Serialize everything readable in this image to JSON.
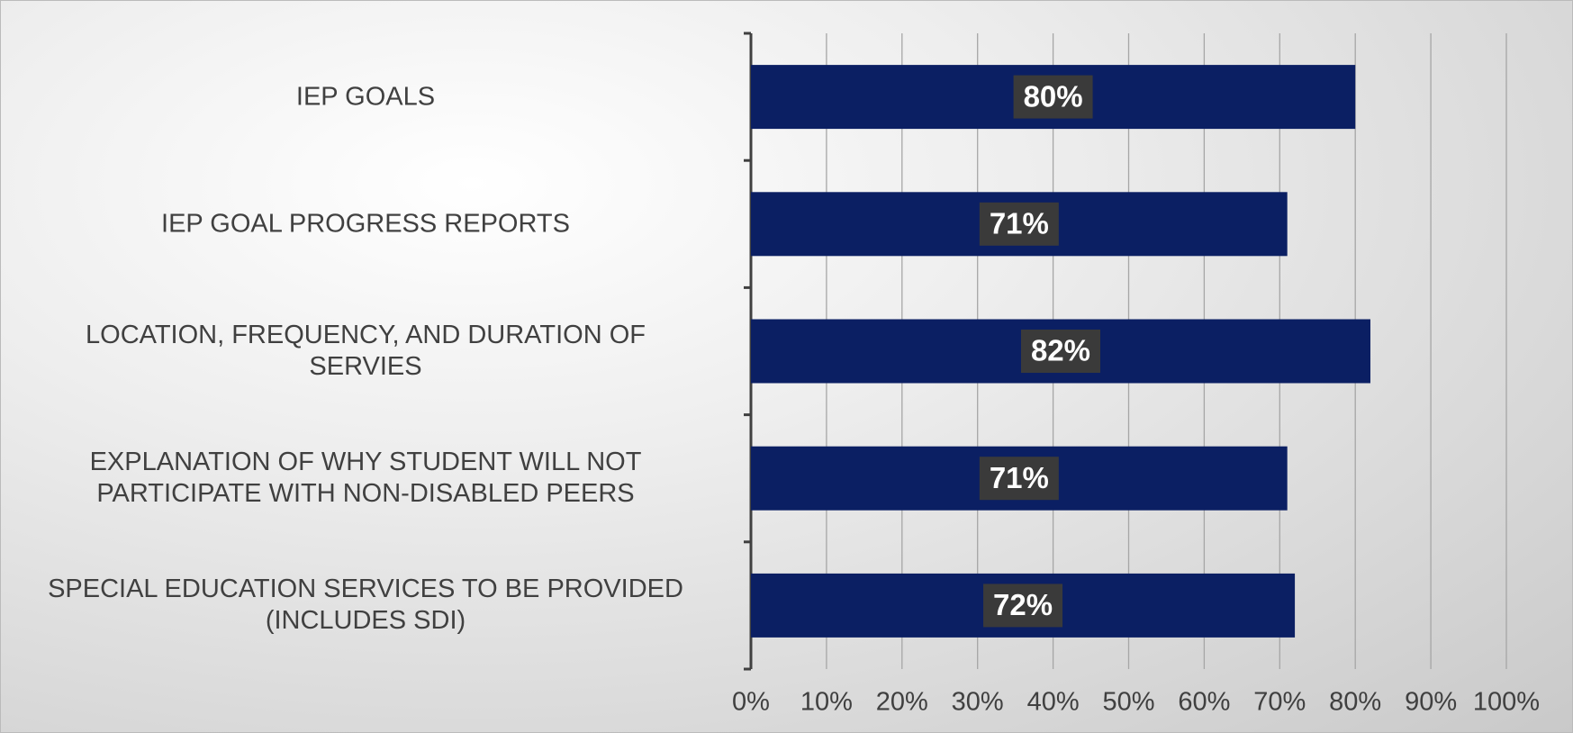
{
  "chart_data": {
    "type": "barh",
    "categories": [
      "IEP GOALS",
      "IEP GOAL PROGRESS REPORTS",
      "LOCATION, FREQUENCY, AND DURATION OF\nSERVIES",
      "EXPLANATION OF WHY STUDENT WILL NOT\nPARTICIPATE WITH NON-DISABLED PEERS",
      "SPECIAL EDUCATION SERVICES TO BE PROVIDED\n(INCLUDES SDI)"
    ],
    "values": [
      80,
      71,
      82,
      71,
      72
    ],
    "value_labels": [
      "80%",
      "71%",
      "82%",
      "71%",
      "72%"
    ],
    "color": "#0b1f63",
    "xlim": [
      0,
      100
    ],
    "xticks": [
      {
        "value": 0,
        "label": "0%"
      },
      {
        "value": 10,
        "label": "10%"
      },
      {
        "value": 20,
        "label": "20%"
      },
      {
        "value": 30,
        "label": "30%"
      },
      {
        "value": 40,
        "label": "40%"
      },
      {
        "value": 50,
        "label": "50%"
      },
      {
        "value": 60,
        "label": "60%"
      },
      {
        "value": 70,
        "label": "70%"
      },
      {
        "value": 80,
        "label": "80%"
      },
      {
        "value": 90,
        "label": "90%"
      },
      {
        "value": 100,
        "label": "100%"
      }
    ],
    "grid": true
  }
}
